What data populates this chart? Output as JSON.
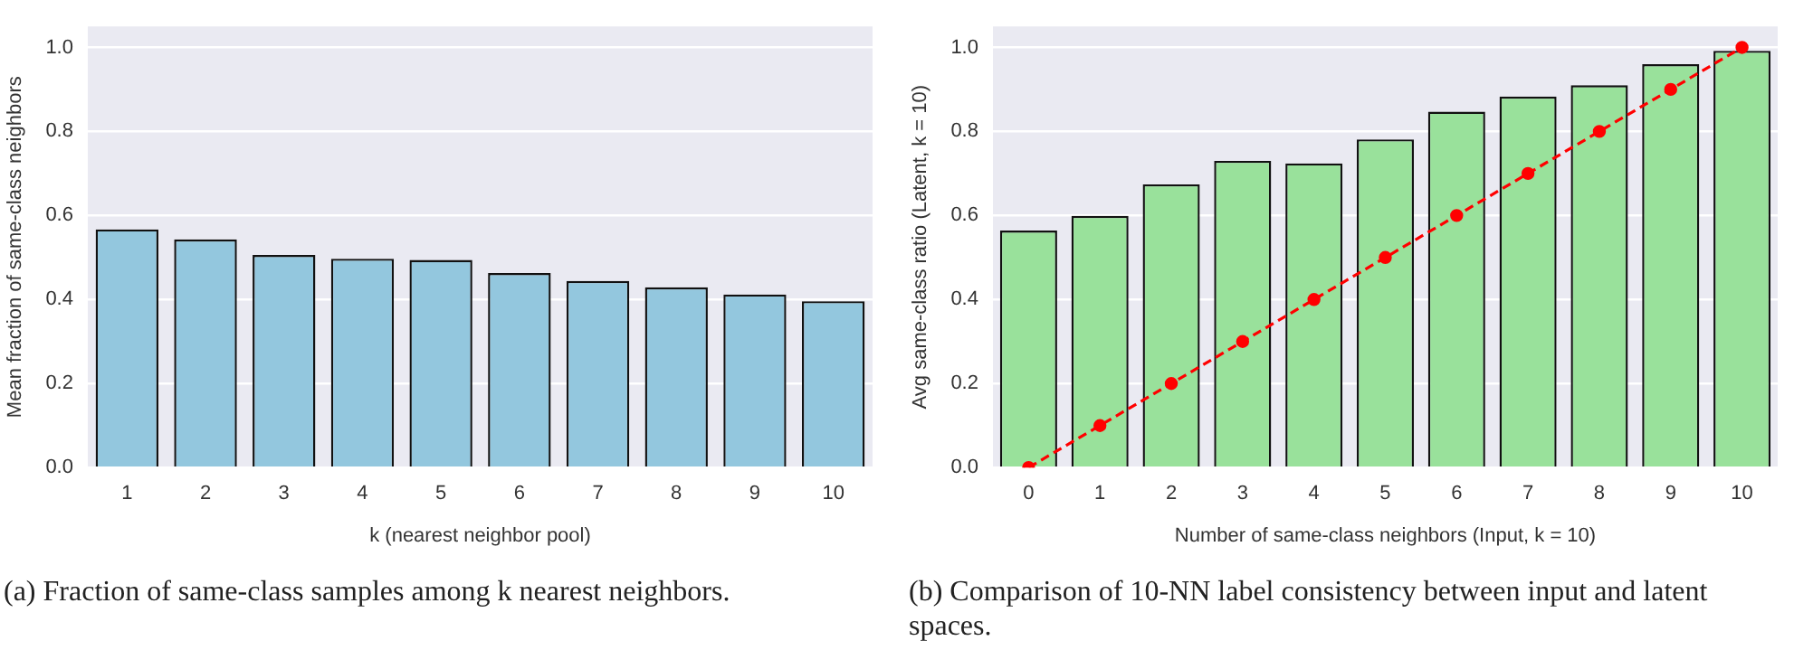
{
  "chart_data": [
    {
      "type": "bar",
      "xlabel": "k (nearest neighbor pool)",
      "ylabel": "Mean fraction of same-class neighbors",
      "categories": [
        "1",
        "2",
        "3",
        "4",
        "5",
        "6",
        "7",
        "8",
        "9",
        "10"
      ],
      "series": [
        {
          "color": "#93c7de",
          "values": [
            0.567,
            0.543,
            0.506,
            0.497,
            0.494,
            0.463,
            0.444,
            0.429,
            0.412,
            0.396
          ]
        }
      ],
      "ylim": [
        0,
        1.05
      ],
      "yticks": [
        {
          "value": 0,
          "label": "0.0"
        },
        {
          "value": 0.2,
          "label": "0.2"
        },
        {
          "value": 0.4,
          "label": "0.4"
        },
        {
          "value": 0.6,
          "label": "0.6"
        },
        {
          "value": 0.8,
          "label": "0.8"
        },
        {
          "value": 1,
          "label": "1.0"
        }
      ],
      "grid": "y",
      "legend": false,
      "annotations": [
        "(a) Fraction of same-class samples among k nearest neighbors."
      ]
    },
    {
      "type": "bar",
      "xlabel": "Number of same-class neighbors (Input, k = 10)",
      "ylabel": "Avg same-class ratio (Latent, k = 10)",
      "categories": [
        "0",
        "1",
        "2",
        "3",
        "4",
        "5",
        "6",
        "7",
        "8",
        "9",
        "10"
      ],
      "series": [
        {
          "color": "#99e19b",
          "values": [
            0.564,
            0.599,
            0.674,
            0.73,
            0.724,
            0.781,
            0.847,
            0.883,
            0.91,
            0.96,
            0.992
          ]
        },
        {
          "type": "line",
          "color": "#ff0000",
          "line_style": "dashed",
          "marker": "circle",
          "values": [
            0,
            0.1,
            0.2,
            0.3,
            0.4,
            0.5,
            0.6,
            0.7,
            0.8,
            0.9,
            1.0
          ]
        }
      ],
      "ylim": [
        0,
        1.05
      ],
      "yticks": [
        {
          "value": 0,
          "label": "0.0"
        },
        {
          "value": 0.2,
          "label": "0.2"
        },
        {
          "value": 0.4,
          "label": "0.4"
        },
        {
          "value": 0.6,
          "label": "0.6"
        },
        {
          "value": 0.8,
          "label": "0.8"
        },
        {
          "value": 1,
          "label": "1.0"
        }
      ],
      "grid": "y",
      "legend": false,
      "annotations": [
        "(b) Comparison of 10-NN label consistency between input and latent spaces."
      ]
    }
  ]
}
